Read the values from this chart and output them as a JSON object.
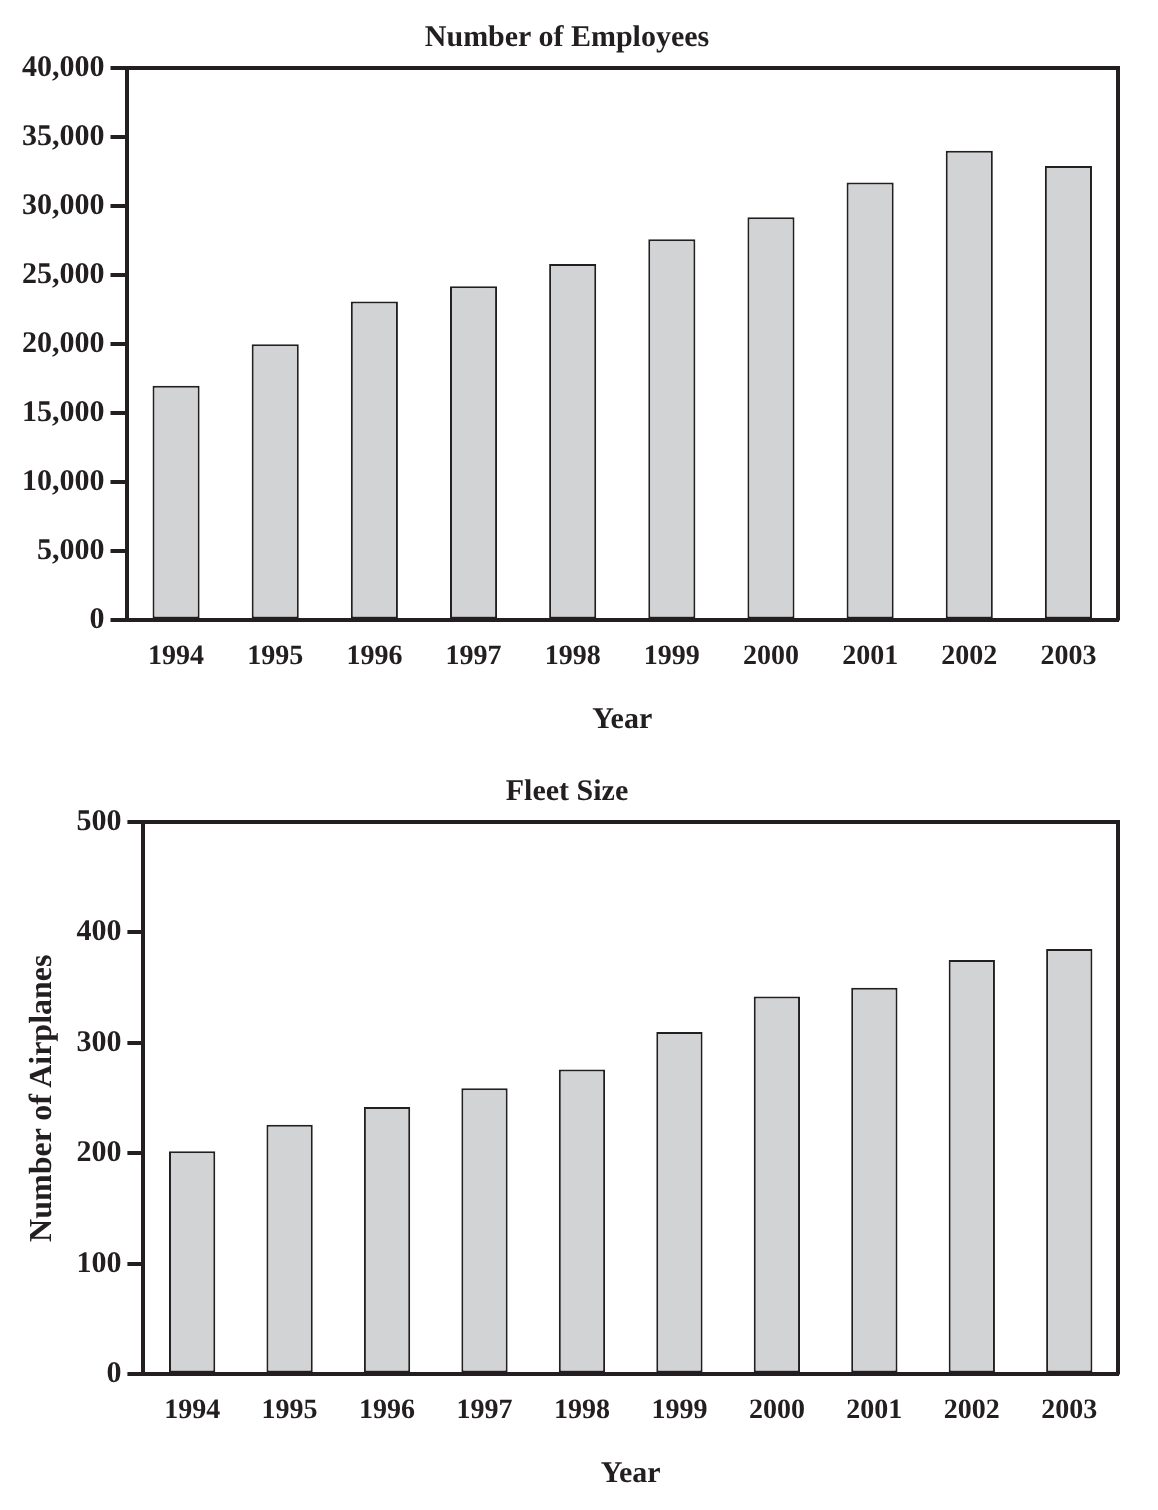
{
  "chart_data": [
    {
      "type": "bar",
      "title": "Number of Employees",
      "xlabel": "Year",
      "categories": [
        "1994",
        "1995",
        "1996",
        "1997",
        "1998",
        "1999",
        "2000",
        "2001",
        "2002",
        "2003"
      ],
      "color": "#d1d3d4",
      "values": [
        17000,
        20000,
        23100,
        24200,
        25800,
        27600,
        29200,
        31700,
        34000,
        32900
      ],
      "ylim": [
        0,
        40000
      ],
      "yticks": [
        {
          "value": 0,
          "label": "0"
        },
        {
          "value": 5000,
          "label": "5,000"
        },
        {
          "value": 10000,
          "label": "10,000"
        },
        {
          "value": 15000,
          "label": "15,000"
        },
        {
          "value": 20000,
          "label": "20,000"
        },
        {
          "value": 25000,
          "label": "25,000"
        },
        {
          "value": 30000,
          "label": "30,000"
        },
        {
          "value": 35000,
          "label": "35,000"
        },
        {
          "value": 40000,
          "label": "40,000"
        }
      ],
      "grid": false,
      "legend": false
    },
    {
      "type": "bar",
      "title": "Fleet Size",
      "xlabel": "Year",
      "ylabel": "Number of Airplanes",
      "categories": [
        "1994",
        "1995",
        "1996",
        "1997",
        "1998",
        "1999",
        "2000",
        "2001",
        "2002",
        "2003"
      ],
      "color": "#d1d3d4",
      "values": [
        202,
        226,
        242,
        259,
        276,
        310,
        342,
        350,
        375,
        385
      ],
      "ylim": [
        0,
        500
      ],
      "yticks": [
        0,
        100,
        200,
        300,
        400,
        500
      ],
      "grid": false,
      "legend": false
    }
  ]
}
